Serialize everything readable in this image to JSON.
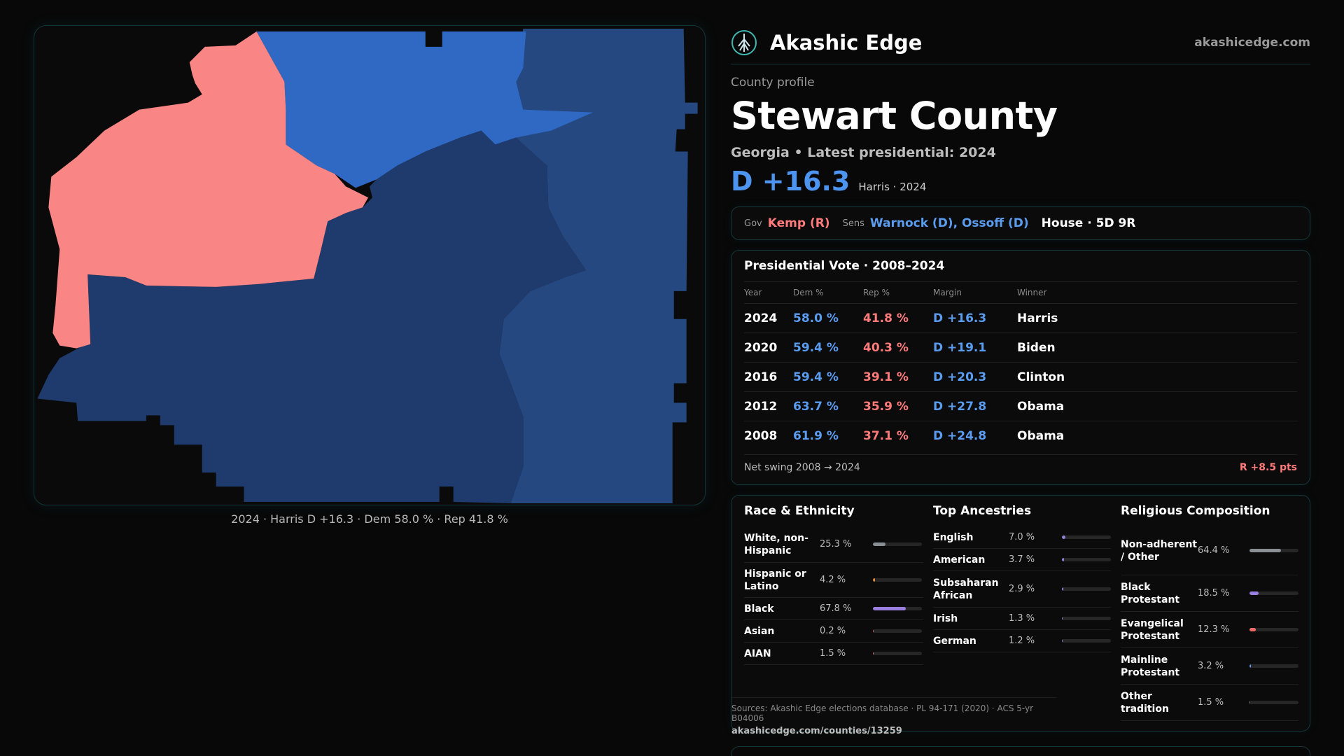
{
  "map": {
    "caption": "2024 · Harris D +16.3 · Dem 58.0 % · Rep 41.8 %",
    "colors": {
      "rep_region": "#f98585",
      "dem_light": "#2f69c4",
      "dem_mid": "#24487f",
      "dem_dark": "#1f3b6e"
    }
  },
  "brand": {
    "name": "Akashic Edge",
    "url": "akashicedge.com",
    "logo_icon": "tree-emblem-icon"
  },
  "county": {
    "kicker": "County profile",
    "name": "Stewart County",
    "subtitle": "Georgia • Latest presidential: 2024",
    "margin": "D +16.3",
    "margin_note": "Harris · 2024"
  },
  "officials": {
    "gov_label": "Gov",
    "gov": "Kemp (R)",
    "sens_label": "Sens",
    "sens": "Warnock (D), Ossoff (D)",
    "house": "House · 5D 9R"
  },
  "votes": {
    "title": "Presidential Vote · 2008–2024",
    "headers": {
      "year": "Year",
      "dem": "Dem %",
      "rep": "Rep %",
      "margin": "Margin",
      "winner": "Winner"
    },
    "rows": [
      {
        "year": "2024",
        "dem": "58.0 %",
        "rep": "41.8 %",
        "margin": "D +16.3",
        "winner": "Harris"
      },
      {
        "year": "2020",
        "dem": "59.4 %",
        "rep": "40.3 %",
        "margin": "D +19.1",
        "winner": "Biden"
      },
      {
        "year": "2016",
        "dem": "59.4 %",
        "rep": "39.1 %",
        "margin": "D +20.3",
        "winner": "Clinton"
      },
      {
        "year": "2012",
        "dem": "63.7 %",
        "rep": "35.9 %",
        "margin": "D +27.8",
        "winner": "Obama"
      },
      {
        "year": "2008",
        "dem": "61.9 %",
        "rep": "37.1 %",
        "margin": "D +24.8",
        "winner": "Obama"
      }
    ],
    "swing_label": "Net swing 2008 → 2024",
    "swing_value": "R +8.5 pts"
  },
  "race": {
    "title": "Race & Ethnicity",
    "rows": [
      {
        "label": "White, non-Hispanic",
        "value": "25.3 %",
        "pct": 25.3,
        "color": "#8a8f96"
      },
      {
        "label": "Hispanic or Latino",
        "value": "4.2 %",
        "pct": 4.2,
        "color": "#e08a3a"
      },
      {
        "label": "Black",
        "value": "67.8 %",
        "pct": 67.8,
        "color": "#9b7fe0"
      },
      {
        "label": "Asian",
        "value": "0.2 %",
        "pct": 0.2,
        "color": "#d96a6a"
      },
      {
        "label": "AIAN",
        "value": "1.5 %",
        "pct": 1.5,
        "color": "#d96a6a"
      }
    ]
  },
  "ancestry": {
    "title": "Top Ancestries",
    "rows": [
      {
        "label": "English",
        "value": "7.0 %",
        "pct": 7.0,
        "color": "#8f86d8"
      },
      {
        "label": "American",
        "value": "3.7 %",
        "pct": 3.7,
        "color": "#8f86d8"
      },
      {
        "label": "Subsaharan African",
        "value": "2.9 %",
        "pct": 2.9,
        "color": "#8f86d8"
      },
      {
        "label": "Irish",
        "value": "1.3 %",
        "pct": 1.3,
        "color": "#8f86d8"
      },
      {
        "label": "German",
        "value": "1.2 %",
        "pct": 1.2,
        "color": "#8f86d8"
      }
    ]
  },
  "religion": {
    "title": "Religious Composition",
    "rows": [
      {
        "label": "Non-adherent / Other",
        "value": "64.4 %",
        "pct": 64.4,
        "color": "#8a8f96"
      },
      {
        "label": "Black Protestant",
        "value": "18.5 %",
        "pct": 18.5,
        "color": "#9b7fe0"
      },
      {
        "label": "Evangelical Protestant",
        "value": "12.3 %",
        "pct": 12.3,
        "color": "#f06a6a"
      },
      {
        "label": "Mainline Protestant",
        "value": "3.2 %",
        "pct": 3.2,
        "color": "#5a9cf0"
      },
      {
        "label": "Other tradition",
        "value": "1.5 %",
        "pct": 1.5,
        "color": "#8a8f96"
      }
    ]
  },
  "sources": {
    "line": "Sources: Akashic Edge elections database · PL 94-171 (2020) · ACS 5-yr B04006",
    "url": "akashicedge.com/counties/13259"
  }
}
